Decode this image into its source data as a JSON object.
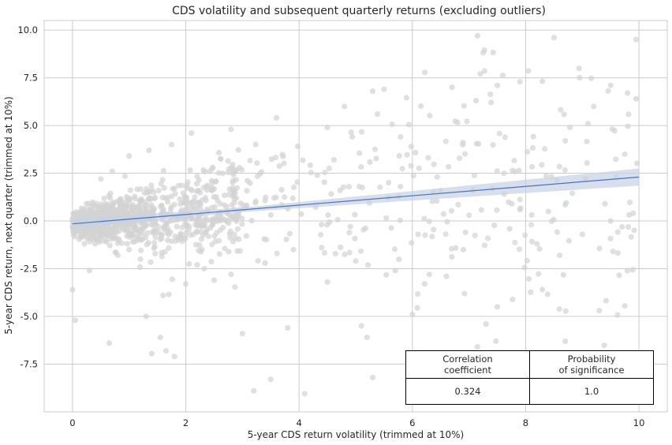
{
  "chart_data": {
    "type": "scatter",
    "title": "CDS volatility and subsequent quarterly returns (excluding outliers)",
    "xlabel": "5-year CDS return volatility (trimmed at 10%)",
    "ylabel": "5-year CDS return, next quarter (trimmed at 10%)",
    "xlim": [
      -0.5,
      10.5
    ],
    "ylim": [
      -10.0,
      10.5
    ],
    "x_ticks": [
      "0",
      "2",
      "4",
      "6",
      "8",
      "10"
    ],
    "y_ticks": [
      "10.0",
      "7.5",
      "5.0",
      "2.5",
      "0.0",
      "-2.5",
      "-5.0",
      "-7.5"
    ],
    "grid": true,
    "colors": {
      "points": "#d3d3d3",
      "regression_line": "#4c72b0",
      "confidence_band": "#c6d2e8",
      "grid": "#cccccc"
    },
    "regression": {
      "intercept": -0.15,
      "slope": 0.245,
      "x_range": [
        0,
        10
      ]
    },
    "confidence_band": [
      [
        0,
        0.25
      ],
      [
        3,
        0.12
      ],
      [
        6,
        0.25
      ],
      [
        10,
        0.45
      ]
    ],
    "points": [
      [
        0.0,
        -3.6
      ],
      [
        0.05,
        -5.2
      ],
      [
        0.65,
        -6.4
      ],
      [
        1.3,
        -5.0
      ],
      [
        1.4,
        -6.95
      ],
      [
        1.55,
        -6.1
      ],
      [
        1.7,
        -3.85
      ],
      [
        1.65,
        -6.8
      ],
      [
        1.8,
        -7.1
      ],
      [
        1.6,
        -3.9
      ],
      [
        3.2,
        -8.9
      ],
      [
        3.5,
        -8.3
      ],
      [
        4.1,
        -9.05
      ],
      [
        3.0,
        -5.9
      ],
      [
        3.8,
        -5.6
      ],
      [
        4.5,
        -3.2
      ],
      [
        5.2,
        -6.1
      ],
      [
        5.1,
        -5.5
      ],
      [
        5.3,
        -8.2
      ],
      [
        6.0,
        -4.9
      ],
      [
        6.3,
        -2.8
      ],
      [
        6.6,
        -2.9
      ],
      [
        7.15,
        -6.6
      ],
      [
        7.6,
        -8.2
      ],
      [
        7.3,
        -5.4
      ],
      [
        7.5,
        -4.5
      ],
      [
        8.7,
        -6.3
      ],
      [
        8.2,
        -1.2
      ],
      [
        9.3,
        -4.7
      ],
      [
        9.75,
        -4.45
      ],
      [
        9.65,
        -2.85
      ],
      [
        9.0,
        -0.7
      ],
      [
        9.5,
        0.0
      ],
      [
        9.9,
        0.4
      ],
      [
        9.95,
        9.5
      ],
      [
        9.95,
        6.4
      ],
      [
        8.5,
        9.6
      ],
      [
        7.15,
        9.7
      ],
      [
        7.2,
        7.7
      ],
      [
        7.5,
        7.1
      ],
      [
        7.9,
        7.3
      ],
      [
        6.7,
        7.0
      ],
      [
        5.3,
        6.8
      ],
      [
        5.5,
        6.9
      ],
      [
        4.8,
        6.0
      ],
      [
        4.5,
        4.9
      ],
      [
        3.6,
        5.4
      ],
      [
        2.8,
        4.8
      ],
      [
        2.1,
        4.6
      ],
      [
        1.75,
        4.0
      ],
      [
        1.35,
        3.7
      ],
      [
        1.0,
        3.4
      ],
      [
        0.7,
        2.6
      ],
      [
        0.5,
        2.2
      ],
      [
        8.95,
        7.5
      ],
      [
        9.2,
        6.0
      ],
      [
        9.1,
        5.1
      ],
      [
        8.7,
        4.2
      ],
      [
        9.5,
        7.1
      ],
      [
        9.75,
        3.5
      ],
      [
        9.6,
        2.3
      ],
      [
        8.4,
        0.5
      ],
      [
        8.6,
        -1.8
      ],
      [
        9.4,
        0.9
      ],
      [
        7.9,
        0.6
      ],
      [
        8.1,
        -0.2
      ],
      [
        7.0,
        0.3
      ],
      [
        6.9,
        -1.5
      ],
      [
        6.1,
        -0.7
      ],
      [
        5.7,
        -2.6
      ],
      [
        5.0,
        -2.1
      ],
      [
        4.4,
        -1.4
      ],
      [
        3.9,
        -1.5
      ],
      [
        3.4,
        -2.2
      ],
      [
        2.8,
        -2.8
      ],
      [
        2.5,
        -3.1
      ],
      [
        2.2,
        -2.3
      ],
      [
        2.0,
        -3.3
      ],
      [
        1.2,
        -2.0
      ],
      [
        1.0,
        -1.5
      ],
      [
        0.8,
        -1.8
      ],
      [
        0.4,
        -1.2
      ],
      [
        0.3,
        -2.6
      ],
      [
        0.6,
        -1.1
      ]
    ]
  },
  "stats_table": {
    "headers": [
      "Correlation\ncoefficient",
      "Probability\nof significance"
    ],
    "values": [
      "0.324",
      "1.0"
    ]
  }
}
